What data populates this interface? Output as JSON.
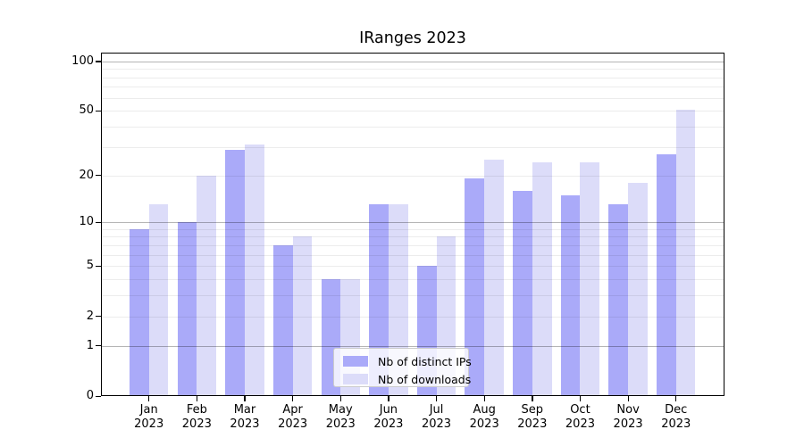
{
  "title": "IRanges 2023",
  "chart_data": {
    "type": "bar",
    "title": "IRanges 2023",
    "months": [
      "Jan",
      "Feb",
      "Mar",
      "Apr",
      "May",
      "Jun",
      "Jul",
      "Aug",
      "Sep",
      "Oct",
      "Nov",
      "Dec"
    ],
    "year_label": "2023",
    "series": [
      {
        "name": "Nb of distinct IPs",
        "color": "#aaaaf9",
        "values": [
          9,
          10,
          29,
          7,
          4,
          13,
          5,
          19,
          16,
          15,
          13,
          27
        ]
      },
      {
        "name": "Nb of downloads",
        "color": "#dcdcf9",
        "values": [
          13,
          20,
          31,
          8,
          4,
          13,
          8,
          25,
          24,
          24,
          18,
          51
        ]
      }
    ],
    "y_axis": {
      "scale": "log10(1+x)",
      "ylim": [
        0,
        113
      ],
      "tick_values": [
        0,
        1,
        2,
        5,
        10,
        20,
        50,
        100
      ],
      "tick_labels": [
        "0",
        "1",
        "2",
        "5",
        "10",
        "20",
        "50",
        "100"
      ],
      "major_gridlines": [
        1,
        10,
        100
      ],
      "minor_gridlines": [
        2,
        3,
        4,
        5,
        6,
        7,
        8,
        9,
        20,
        30,
        40,
        50,
        60,
        70,
        80,
        90
      ]
    },
    "grid": "on",
    "legend_position": "lower center"
  }
}
